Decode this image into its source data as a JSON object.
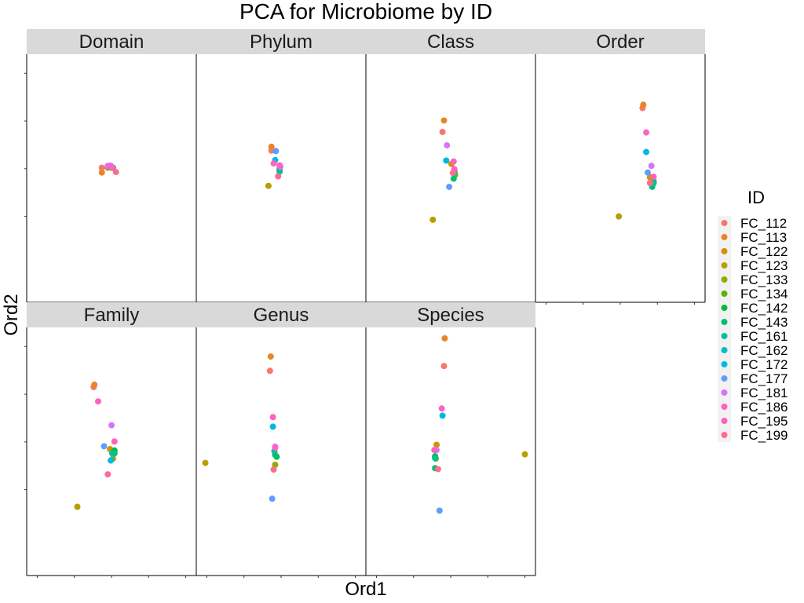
{
  "chart_data": {
    "type": "scatter",
    "title": "PCA for Microbiome by ID",
    "xlabel": "Ord1",
    "ylabel": "Ord2",
    "xlim": [
      -1,
      1
    ],
    "ylim": [
      -1,
      1
    ],
    "facets_layout": "wrap-4-columns",
    "legend": {
      "title": "ID",
      "position": "right",
      "entries": [
        {
          "id": "FC_112",
          "color": "#F8766D"
        },
        {
          "id": "FC_113",
          "color": "#E88526"
        },
        {
          "id": "FC_122",
          "color": "#D39200"
        },
        {
          "id": "FC_123",
          "color": "#B79F00"
        },
        {
          "id": "FC_133",
          "color": "#93AA00"
        },
        {
          "id": "FC_134",
          "color": "#5EB300"
        },
        {
          "id": "FC_142",
          "color": "#00BA38"
        },
        {
          "id": "FC_143",
          "color": "#00BF74"
        },
        {
          "id": "FC_161",
          "color": "#00C19F"
        },
        {
          "id": "FC_162",
          "color": "#00BFC4"
        },
        {
          "id": "FC_172",
          "color": "#00B9E3"
        },
        {
          "id": "FC_177",
          "color": "#619CFF"
        },
        {
          "id": "FC_181",
          "color": "#DB72FB"
        },
        {
          "id": "FC_186",
          "color": "#FF61C3"
        },
        {
          "id": "FC_195",
          "color": "#FF61C3"
        },
        {
          "id": "FC_199",
          "color": "#FF6C91"
        }
      ]
    },
    "facets": [
      {
        "name": "Domain",
        "points": [
          {
            "id": "FC_112",
            "x": -0.13,
            "y": 0.02
          },
          {
            "id": "FC_113",
            "x": -0.13,
            "y": -0.08
          },
          {
            "id": "FC_122",
            "x": -0.05,
            "y": 0.02
          },
          {
            "id": "FC_133",
            "x": 0.0,
            "y": 0.02
          },
          {
            "id": "FC_142",
            "x": 0.02,
            "y": 0.02
          },
          {
            "id": "FC_161",
            "x": 0.0,
            "y": 0.04
          },
          {
            "id": "FC_172",
            "x": -0.03,
            "y": 0.04
          },
          {
            "id": "FC_177",
            "x": -0.01,
            "y": 0.06
          },
          {
            "id": "FC_181",
            "x": -0.05,
            "y": 0.06
          },
          {
            "id": "FC_186",
            "x": -0.02,
            "y": 0.06
          },
          {
            "id": "FC_195",
            "x": 0.01,
            "y": 0.03
          },
          {
            "id": "FC_199",
            "x": 0.06,
            "y": -0.07
          }
        ]
      },
      {
        "name": "Phylum",
        "points": [
          {
            "id": "FC_112",
            "x": -0.13,
            "y": 0.38
          },
          {
            "id": "FC_113",
            "x": -0.13,
            "y": 0.46
          },
          {
            "id": "FC_123",
            "x": -0.17,
            "y": -0.36
          },
          {
            "id": "FC_133",
            "x": -0.02,
            "y": 0.0
          },
          {
            "id": "FC_143",
            "x": -0.02,
            "y": -0.06
          },
          {
            "id": "FC_161",
            "x": -0.02,
            "y": -0.04
          },
          {
            "id": "FC_172",
            "x": -0.08,
            "y": 0.18
          },
          {
            "id": "FC_177",
            "x": -0.07,
            "y": 0.37
          },
          {
            "id": "FC_181",
            "x": -0.01,
            "y": 0.04
          },
          {
            "id": "FC_186",
            "x": -0.1,
            "y": 0.11
          },
          {
            "id": "FC_195",
            "x": -0.02,
            "y": 0.07
          },
          {
            "id": "FC_199",
            "x": -0.04,
            "y": -0.16
          }
        ]
      },
      {
        "name": "Class",
        "points": [
          {
            "id": "FC_112",
            "x": -0.11,
            "y": 0.77
          },
          {
            "id": "FC_113",
            "x": -0.09,
            "y": 1.01
          },
          {
            "id": "FC_122",
            "x": 0.01,
            "y": 0.1
          },
          {
            "id": "FC_123",
            "x": -0.24,
            "y": -1.07
          },
          {
            "id": "FC_133",
            "x": 0.06,
            "y": -0.13
          },
          {
            "id": "FC_142",
            "x": 0.05,
            "y": -0.06
          },
          {
            "id": "FC_143",
            "x": 0.04,
            "y": -0.21
          },
          {
            "id": "FC_161",
            "x": 0.05,
            "y": -0.09
          },
          {
            "id": "FC_172",
            "x": -0.06,
            "y": 0.17
          },
          {
            "id": "FC_177",
            "x": -0.02,
            "y": -0.38
          },
          {
            "id": "FC_181",
            "x": -0.05,
            "y": 0.49
          },
          {
            "id": "FC_186",
            "x": 0.04,
            "y": 0.15
          },
          {
            "id": "FC_195",
            "x": 0.05,
            "y": -0.01
          },
          {
            "id": "FC_199",
            "x": 0.03,
            "y": -0.09
          }
        ]
      },
      {
        "name": "Order",
        "points": [
          {
            "id": "FC_112",
            "x": 0.3,
            "y": 1.27
          },
          {
            "id": "FC_113",
            "x": 0.31,
            "y": 1.34
          },
          {
            "id": "FC_122",
            "x": 0.4,
            "y": -0.18
          },
          {
            "id": "FC_123",
            "x": -0.02,
            "y": -1.0
          },
          {
            "id": "FC_134",
            "x": 0.45,
            "y": -0.26
          },
          {
            "id": "FC_142",
            "x": 0.44,
            "y": -0.32
          },
          {
            "id": "FC_143",
            "x": 0.43,
            "y": -0.38
          },
          {
            "id": "FC_161",
            "x": 0.45,
            "y": -0.3
          },
          {
            "id": "FC_172",
            "x": 0.35,
            "y": 0.35
          },
          {
            "id": "FC_177",
            "x": 0.37,
            "y": -0.08
          },
          {
            "id": "FC_181",
            "x": 0.42,
            "y": 0.06
          },
          {
            "id": "FC_186",
            "x": 0.35,
            "y": 0.76
          },
          {
            "id": "FC_195",
            "x": 0.45,
            "y": -0.17
          },
          {
            "id": "FC_199",
            "x": 0.4,
            "y": -0.3
          }
        ]
      },
      {
        "name": "Family",
        "points": [
          {
            "id": "FC_112",
            "x": -0.24,
            "y": 1.15
          },
          {
            "id": "FC_113",
            "x": -0.23,
            "y": 1.2
          },
          {
            "id": "FC_122",
            "x": -0.02,
            "y": -0.15
          },
          {
            "id": "FC_123",
            "x": -0.46,
            "y": -1.36
          },
          {
            "id": "FC_133",
            "x": 0.02,
            "y": -0.35
          },
          {
            "id": "FC_142",
            "x": 0.04,
            "y": -0.18
          },
          {
            "id": "FC_143",
            "x": 0.04,
            "y": -0.24
          },
          {
            "id": "FC_161",
            "x": 0.01,
            "y": -0.24
          },
          {
            "id": "FC_172",
            "x": -0.01,
            "y": -0.39
          },
          {
            "id": "FC_177",
            "x": -0.1,
            "y": -0.09
          },
          {
            "id": "FC_181",
            "x": 0.0,
            "y": 0.35
          },
          {
            "id": "FC_186",
            "x": -0.18,
            "y": 0.85
          },
          {
            "id": "FC_195",
            "x": 0.04,
            "y": 0.01
          },
          {
            "id": "FC_199",
            "x": -0.05,
            "y": -0.68
          }
        ]
      },
      {
        "name": "Genus",
        "points": [
          {
            "id": "FC_112",
            "x": -0.15,
            "y": 1.49
          },
          {
            "id": "FC_113",
            "x": -0.14,
            "y": 1.79
          },
          {
            "id": "FC_123",
            "x": -1.02,
            "y": -0.44
          },
          {
            "id": "FC_133",
            "x": -0.08,
            "y": -0.48
          },
          {
            "id": "FC_142",
            "x": -0.06,
            "y": -0.31
          },
          {
            "id": "FC_143",
            "x": -0.08,
            "y": -0.27
          },
          {
            "id": "FC_161",
            "x": -0.09,
            "y": -0.19
          },
          {
            "id": "FC_172",
            "x": -0.11,
            "y": 0.32
          },
          {
            "id": "FC_177",
            "x": -0.12,
            "y": -1.19
          },
          {
            "id": "FC_181",
            "x": -0.08,
            "y": -0.1
          },
          {
            "id": "FC_186",
            "x": -0.11,
            "y": 0.52
          },
          {
            "id": "FC_195",
            "x": -0.08,
            "y": -0.12
          },
          {
            "id": "FC_199",
            "x": -0.1,
            "y": -0.58
          }
        ]
      },
      {
        "name": "Species",
        "points": [
          {
            "id": "FC_112",
            "x": -0.09,
            "y": 1.59
          },
          {
            "id": "FC_113",
            "x": -0.08,
            "y": 2.17
          },
          {
            "id": "FC_122",
            "x": -0.19,
            "y": -0.06
          },
          {
            "id": "FC_123",
            "x": 1.0,
            "y": -0.26
          },
          {
            "id": "FC_133",
            "x": -0.2,
            "y": -0.35
          },
          {
            "id": "FC_134",
            "x": -0.21,
            "y": -0.33
          },
          {
            "id": "FC_142",
            "x": -0.21,
            "y": -0.3
          },
          {
            "id": "FC_143",
            "x": -0.21,
            "y": -0.55
          },
          {
            "id": "FC_161",
            "x": -0.21,
            "y": -0.34
          },
          {
            "id": "FC_172",
            "x": -0.11,
            "y": 0.55
          },
          {
            "id": "FC_177",
            "x": -0.15,
            "y": -1.44
          },
          {
            "id": "FC_181",
            "x": -0.19,
            "y": -0.17
          },
          {
            "id": "FC_186",
            "x": -0.12,
            "y": 0.7
          },
          {
            "id": "FC_195",
            "x": -0.22,
            "y": -0.17
          },
          {
            "id": "FC_199",
            "x": -0.17,
            "y": -0.57
          }
        ]
      }
    ]
  }
}
